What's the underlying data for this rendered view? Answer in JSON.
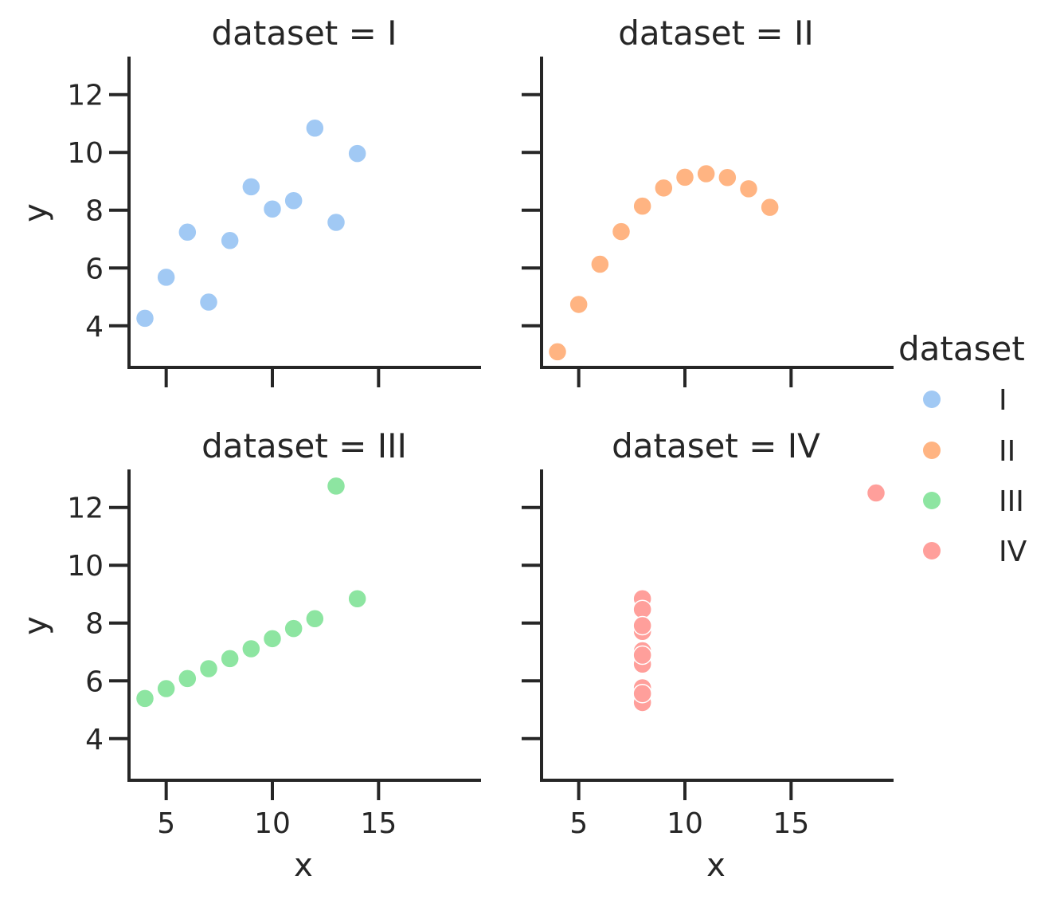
{
  "chart_data": [
    {
      "type": "scatter",
      "title": "dataset = I",
      "series": [
        {
          "name": "I",
          "color": "#a1c9f4",
          "x": [
            10,
            8,
            13,
            9,
            11,
            14,
            6,
            4,
            12,
            7,
            5
          ],
          "y": [
            8.04,
            6.95,
            7.58,
            8.81,
            8.33,
            9.96,
            7.24,
            4.26,
            10.84,
            4.82,
            5.68
          ]
        }
      ],
      "xlabel": "",
      "ylabel": "y",
      "xlim": [
        3.25,
        19.75
      ],
      "ylim": [
        2.56,
        13.26
      ],
      "xticks": [
        5,
        10,
        15
      ],
      "yticks": [
        4,
        6,
        8,
        10,
        12
      ],
      "show_xticklabels": false,
      "show_yticklabels": true,
      "grid": false
    },
    {
      "type": "scatter",
      "title": "dataset = II",
      "series": [
        {
          "name": "II",
          "color": "#ffb482",
          "x": [
            10,
            8,
            13,
            9,
            11,
            14,
            6,
            4,
            12,
            7,
            5
          ],
          "y": [
            9.14,
            8.14,
            8.74,
            8.77,
            9.26,
            8.1,
            6.13,
            3.1,
            9.13,
            7.26,
            4.74
          ]
        }
      ],
      "xlabel": "",
      "ylabel": "",
      "xlim": [
        3.25,
        19.75
      ],
      "ylim": [
        2.56,
        13.26
      ],
      "xticks": [
        5,
        10,
        15
      ],
      "yticks": [
        4,
        6,
        8,
        10,
        12
      ],
      "show_xticklabels": false,
      "show_yticklabels": false,
      "grid": false
    },
    {
      "type": "scatter",
      "title": "dataset = III",
      "series": [
        {
          "name": "III",
          "color": "#8de5a1",
          "x": [
            10,
            8,
            13,
            9,
            11,
            14,
            6,
            4,
            12,
            7,
            5
          ],
          "y": [
            7.46,
            6.77,
            12.74,
            7.11,
            7.81,
            8.84,
            6.08,
            5.39,
            8.15,
            6.42,
            5.73
          ]
        }
      ],
      "xlabel": "x",
      "ylabel": "y",
      "xlim": [
        3.25,
        19.75
      ],
      "ylim": [
        2.56,
        13.26
      ],
      "xticks": [
        5,
        10,
        15
      ],
      "yticks": [
        4,
        6,
        8,
        10,
        12
      ],
      "show_xticklabels": true,
      "show_yticklabels": true,
      "grid": false
    },
    {
      "type": "scatter",
      "title": "dataset = IV",
      "series": [
        {
          "name": "IV",
          "color": "#ff9f9b",
          "x": [
            8,
            8,
            8,
            8,
            8,
            8,
            8,
            19,
            8,
            8,
            8
          ],
          "y": [
            6.58,
            5.76,
            7.71,
            8.84,
            8.47,
            7.04,
            5.25,
            12.5,
            5.56,
            7.91,
            6.89
          ]
        }
      ],
      "xlabel": "x",
      "ylabel": "",
      "xlim": [
        3.25,
        19.75
      ],
      "ylim": [
        2.56,
        13.26
      ],
      "xticks": [
        5,
        10,
        15
      ],
      "yticks": [
        4,
        6,
        8,
        10,
        12
      ],
      "show_xticklabels": true,
      "show_yticklabels": false,
      "grid": false
    }
  ],
  "legend": {
    "title": "dataset",
    "placement": "right",
    "entries": [
      {
        "label": "I",
        "color": "#a1c9f4"
      },
      {
        "label": "II",
        "color": "#ffb482"
      },
      {
        "label": "III",
        "color": "#8de5a1"
      },
      {
        "label": "IV",
        "color": "#ff9f9b"
      }
    ]
  }
}
